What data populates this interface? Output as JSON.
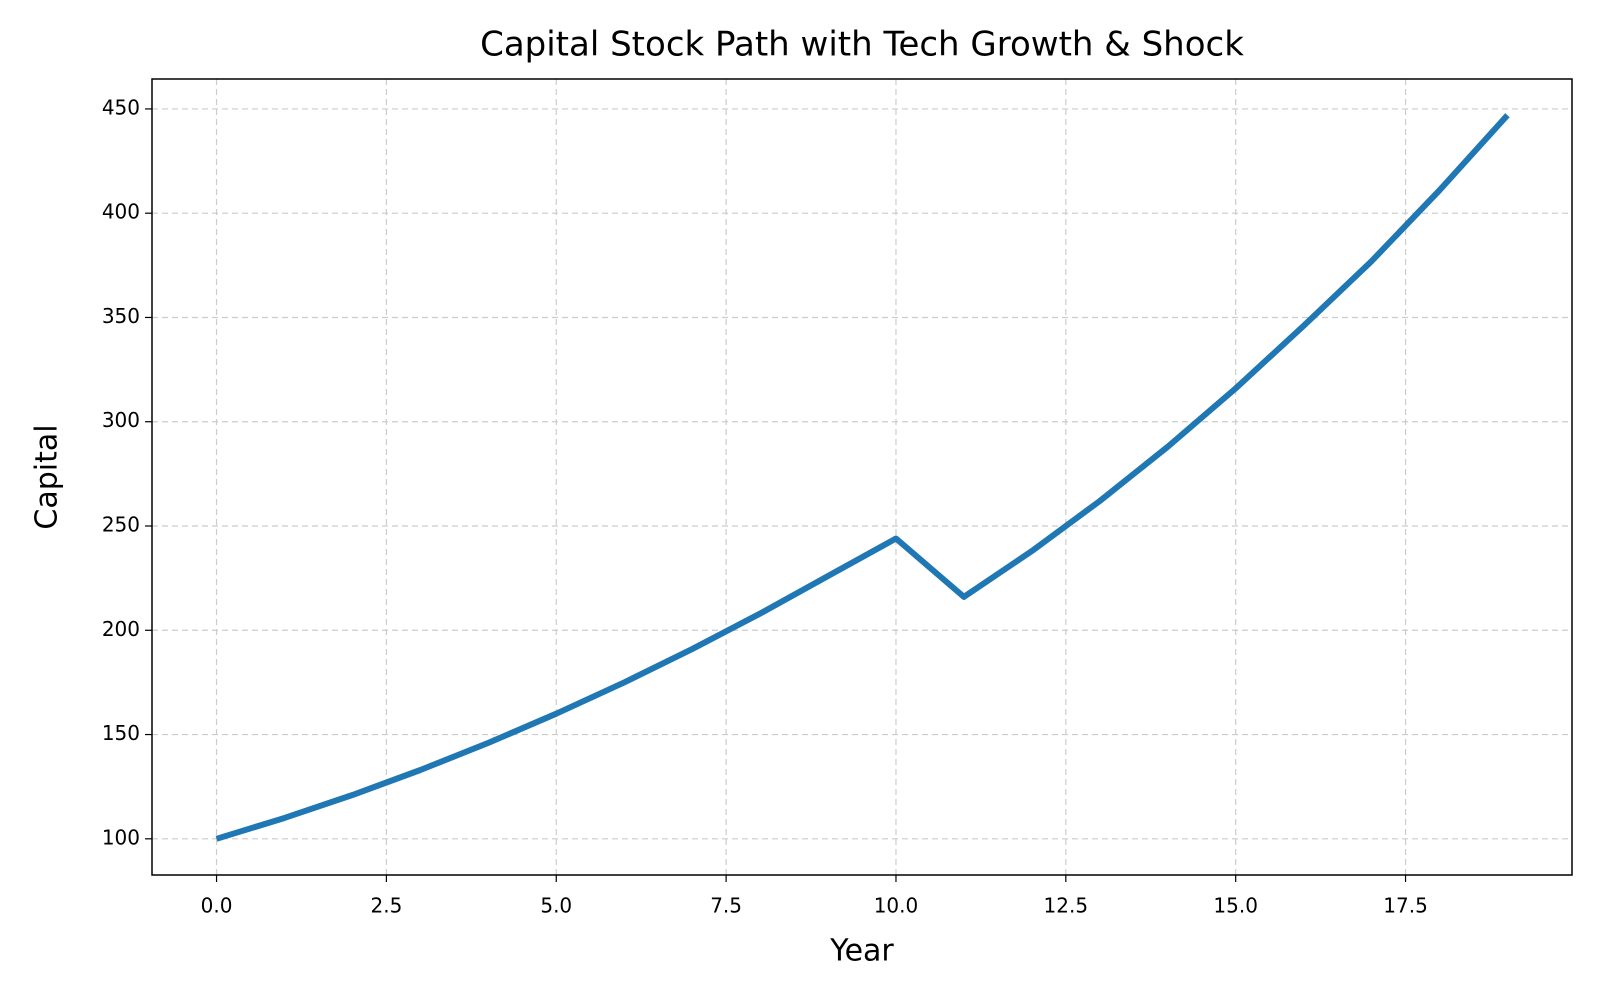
{
  "chart_data": {
    "type": "line",
    "title": "Capital Stock Path with Tech Growth & Shock",
    "xlabel": "Year",
    "ylabel": "Capital",
    "x": [
      0,
      1,
      2,
      3,
      4,
      5,
      6,
      7,
      8,
      9,
      10,
      11,
      12,
      13,
      14,
      15,
      16,
      17,
      18,
      19
    ],
    "series": [
      {
        "name": "Capital",
        "color": "#1f77b4",
        "values": [
          100,
          110,
          121,
          133,
          146,
          160,
          175,
          191,
          208,
          226,
          244,
          216,
          238,
          262,
          288,
          316,
          346,
          377,
          411,
          447
        ]
      }
    ],
    "xlim": [
      -0.95,
      19.95
    ],
    "xticks": [
      {
        "value": 0,
        "label": "0.0"
      },
      {
        "value": 2.5,
        "label": "2.5"
      },
      {
        "value": 5,
        "label": "5.0"
      },
      {
        "value": 7.5,
        "label": "7.5"
      },
      {
        "value": 10,
        "label": "10.0"
      },
      {
        "value": 12.5,
        "label": "12.5"
      },
      {
        "value": 15,
        "label": "15.0"
      },
      {
        "value": 17.5,
        "label": "17.5"
      }
    ],
    "ylim": [
      82.65,
      464.35
    ],
    "yticks": [
      100,
      150,
      200,
      250,
      300,
      350,
      400,
      450
    ],
    "grid": true
  }
}
